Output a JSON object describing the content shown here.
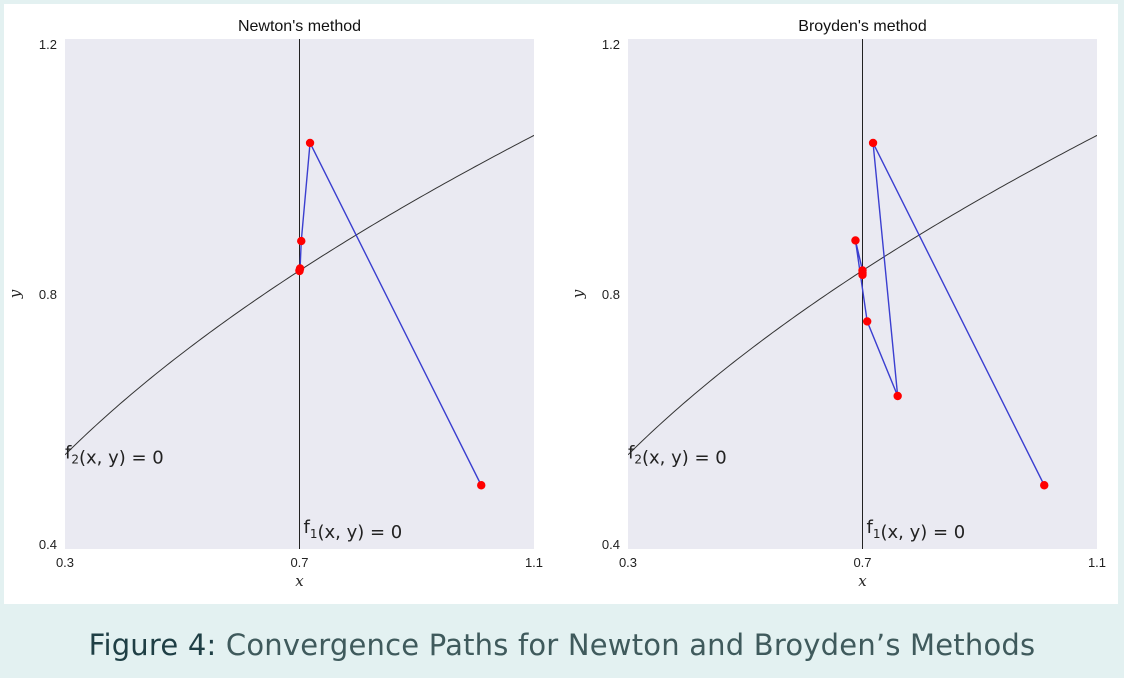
{
  "caption": {
    "label": "Figure 4:",
    "text": " Convergence Paths for Newton and Broyden’s Methods"
  },
  "colors": {
    "plot_background": "#eaeaf2",
    "path_line": "#3b3fd0",
    "iterate_marker": "#ff0000",
    "curve": "#333333"
  },
  "chart_data": [
    {
      "type": "line",
      "title": "Newton's method",
      "xlabel": "x",
      "ylabel": "y",
      "xlim": [
        0.3,
        1.1
      ],
      "ylim": [
        0.4,
        1.2
      ],
      "xticks": [
        "0.3",
        "0.7",
        "1.1"
      ],
      "yticks": [
        "0.4",
        "0.8",
        "1.2"
      ],
      "grid": false,
      "curve_labels": [
        {
          "name": "f2",
          "text": "f₂(x, y) = 0"
        },
        {
          "name": "f1",
          "text": "f₁(x, y) = 0"
        }
      ],
      "series": [
        {
          "kind": "iterate_path",
          "x": [
            1.01,
            0.718,
            0.703,
            0.701,
            0.7,
            0.7
          ],
          "y": [
            0.5,
            1.037,
            0.883,
            0.84,
            0.837,
            0.836
          ]
        }
      ]
    },
    {
      "type": "line",
      "title": "Broyden's method",
      "xlabel": "x",
      "ylabel": "y",
      "xlim": [
        0.3,
        1.1
      ],
      "ylim": [
        0.4,
        1.2
      ],
      "xticks": [
        "0.3",
        "0.7",
        "1.1"
      ],
      "yticks": [
        "0.4",
        "0.8",
        "1.2"
      ],
      "grid": false,
      "curve_labels": [
        {
          "name": "f2",
          "text": "f₂(x, y) = 0"
        },
        {
          "name": "f1",
          "text": "f₁(x, y) = 0"
        }
      ],
      "series": [
        {
          "kind": "iterate_path",
          "x": [
            1.01,
            0.718,
            0.76,
            0.708,
            0.688,
            0.7,
            0.7,
            0.7
          ],
          "y": [
            0.5,
            1.037,
            0.64,
            0.757,
            0.884,
            0.837,
            0.833,
            0.83
          ]
        }
      ]
    }
  ]
}
